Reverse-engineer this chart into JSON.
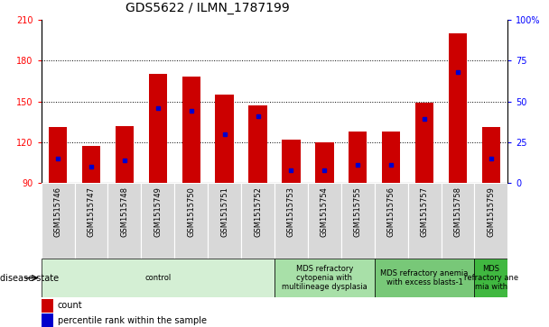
{
  "title": "GDS5622 / ILMN_1787199",
  "samples": [
    "GSM1515746",
    "GSM1515747",
    "GSM1515748",
    "GSM1515749",
    "GSM1515750",
    "GSM1515751",
    "GSM1515752",
    "GSM1515753",
    "GSM1515754",
    "GSM1515755",
    "GSM1515756",
    "GSM1515757",
    "GSM1515758",
    "GSM1515759"
  ],
  "counts": [
    131,
    117,
    132,
    170,
    168,
    155,
    147,
    122,
    120,
    128,
    128,
    149,
    200,
    131
  ],
  "percentile_ranks": [
    15,
    10,
    14,
    46,
    44,
    30,
    41,
    8,
    8,
    11,
    11,
    39,
    68,
    15
  ],
  "ymin": 90,
  "ymax": 210,
  "yticks_left": [
    90,
    120,
    150,
    180,
    210
  ],
  "yticks_right": [
    0,
    25,
    50,
    75,
    100
  ],
  "bar_color": "#cc0000",
  "dot_color": "#0000cc",
  "disease_groups": [
    {
      "label": "control",
      "start": 0,
      "end": 7,
      "color": "#d4efd4"
    },
    {
      "label": "MDS refractory\ncytopenia with\nmultilineage dysplasia",
      "start": 7,
      "end": 10,
      "color": "#a8e0a8"
    },
    {
      "label": "MDS refractory anemia\nwith excess blasts-1",
      "start": 10,
      "end": 13,
      "color": "#78c878"
    },
    {
      "label": "MDS\nrefractory ane\nmia with",
      "start": 13,
      "end": 14,
      "color": "#40b840"
    }
  ],
  "bar_width": 0.55,
  "cell_bg": "#d8d8d8",
  "grid_yticks": [
    120,
    150,
    180
  ],
  "title_fontsize": 10,
  "tick_fontsize": 7,
  "sample_fontsize": 6,
  "disease_fontsize": 6,
  "legend_fontsize": 7,
  "disease_state_label": "disease state"
}
